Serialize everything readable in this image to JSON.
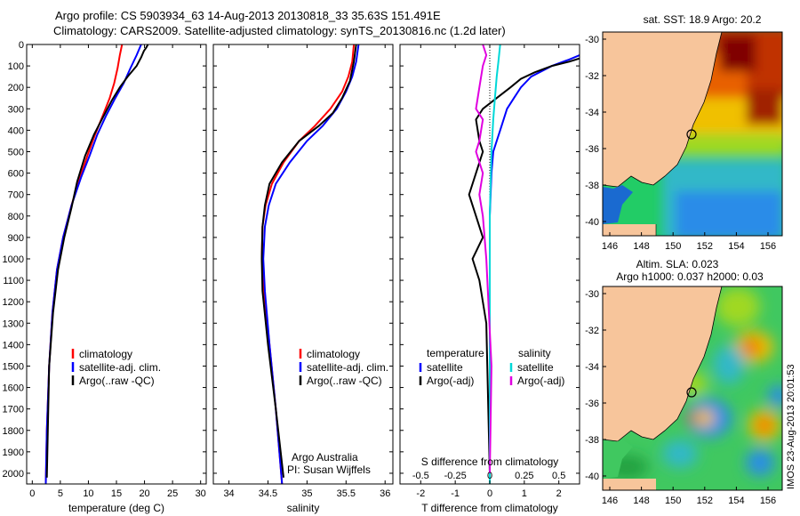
{
  "header": {
    "line1": "Argo profile: CS 5903934_63 14-Aug-2013 20130818_33 35.63S 151.491E",
    "line2": "Climatology: CARS2009. Satellite-adjusted climatology: synTS_20130816.nc (1.2d later)"
  },
  "credit": {
    "org": "Argo Australia",
    "pi": "PI: Susan Wijffels",
    "imos": "IMOS 23-Aug-2013 20:01:53"
  },
  "colors": {
    "climatology": "#ff0000",
    "satellite": "#0000ff",
    "argo": "#000000",
    "sat_salinity": "#00d8d8",
    "argo_salinity": "#e000e0",
    "land": "#f7c59b"
  },
  "chart_data": [
    {
      "type": "line",
      "id": "temperature",
      "xlabel": "temperature (deg C)",
      "ylim": [
        2050,
        0
      ],
      "xlim": [
        -1,
        31
      ],
      "yticks": [
        0,
        100,
        200,
        300,
        400,
        500,
        600,
        700,
        800,
        900,
        1000,
        1100,
        1200,
        1300,
        1400,
        1500,
        1600,
        1700,
        1800,
        1900,
        2000
      ],
      "xticks": [
        0,
        5,
        10,
        15,
        20,
        25,
        30
      ],
      "legend": [
        "climatology",
        "satellite-adj. clim.",
        "Argo(..raw -QC)"
      ],
      "series": [
        {
          "name": "climatology",
          "color": "#ff0000",
          "x": [
            2.4,
            2.6,
            3.0,
            3.6,
            4.4,
            5.5,
            7.0,
            8.5,
            9.8,
            11.2,
            12.6,
            13.8,
            14.6,
            15.2,
            15.6,
            16.0
          ],
          "y": [
            2050,
            1800,
            1500,
            1250,
            1050,
            900,
            750,
            620,
            520,
            420,
            330,
            250,
            180,
            110,
            50,
            0
          ]
        },
        {
          "name": "satellite-adj. clim.",
          "color": "#0000ff",
          "x": [
            2.4,
            2.6,
            3.0,
            3.6,
            4.4,
            5.5,
            7.0,
            8.7,
            10.2,
            11.6,
            13.2,
            14.8,
            16.3,
            17.5,
            18.6,
            19.4
          ],
          "y": [
            2050,
            1800,
            1500,
            1250,
            1050,
            900,
            750,
            620,
            520,
            420,
            330,
            250,
            180,
            110,
            50,
            0
          ]
        },
        {
          "name": "Argo(..raw -QC)",
          "color": "#000000",
          "x": [
            2.6,
            3.0,
            3.7,
            4.6,
            5.7,
            7.0,
            8.0,
            9.4,
            11.0,
            12.6,
            14.2,
            15.6,
            17.0,
            18.6,
            19.4,
            19.9,
            20.3,
            20.6
          ],
          "y": [
            2020,
            1500,
            1250,
            1050,
            900,
            760,
            640,
            520,
            420,
            340,
            260,
            200,
            150,
            100,
            60,
            30,
            15,
            0
          ]
        }
      ]
    },
    {
      "type": "line",
      "id": "salinity",
      "xlabel": "salinity",
      "ylim": [
        2050,
        0
      ],
      "xlim": [
        33.8,
        36.1
      ],
      "xticks": [
        34,
        34.5,
        35,
        35.5,
        36
      ],
      "legend": [
        "climatology",
        "satellite-adj. clim.",
        "Argo(..raw -QC)"
      ],
      "series": [
        {
          "name": "climatology",
          "color": "#ff0000",
          "x": [
            34.68,
            34.6,
            34.52,
            34.45,
            34.42,
            34.43,
            34.47,
            34.55,
            34.7,
            34.9,
            35.1,
            35.3,
            35.45,
            35.53,
            35.58,
            35.6
          ],
          "y": [
            2050,
            1700,
            1400,
            1150,
            1000,
            850,
            750,
            650,
            550,
            450,
            380,
            300,
            220,
            150,
            80,
            0
          ]
        },
        {
          "name": "satellite-adj. clim.",
          "color": "#0000ff",
          "x": [
            34.68,
            34.6,
            34.52,
            34.46,
            34.44,
            34.46,
            34.51,
            34.6,
            34.78,
            35.0,
            35.2,
            35.38,
            35.5,
            35.58,
            35.63,
            35.66
          ],
          "y": [
            2050,
            1700,
            1400,
            1150,
            1000,
            850,
            750,
            650,
            550,
            450,
            380,
            300,
            220,
            150,
            80,
            0
          ]
        },
        {
          "name": "Argo(..raw -QC)",
          "color": "#000000",
          "x": [
            34.7,
            34.6,
            34.5,
            34.43,
            34.42,
            34.43,
            34.46,
            34.52,
            34.68,
            34.9,
            35.15,
            35.33,
            35.45,
            35.55,
            35.6,
            35.63
          ],
          "y": [
            2020,
            1700,
            1400,
            1150,
            1000,
            850,
            750,
            650,
            550,
            450,
            380,
            320,
            250,
            170,
            80,
            0
          ]
        }
      ]
    },
    {
      "type": "line",
      "id": "difference",
      "xlabel": "T difference from climatology",
      "x2label": "S difference from climatology",
      "ylim": [
        2050,
        0
      ],
      "xlim": [
        -2.6,
        2.6
      ],
      "xticks": [
        -2,
        -1,
        0,
        1,
        2
      ],
      "x2ticks": [
        "-0.5",
        "-0.25",
        "0",
        "0.25",
        "0.5"
      ],
      "x2tick_positions": [
        -2,
        -1,
        0,
        1,
        2
      ],
      "legend_titles": [
        "temperature",
        "salinity"
      ],
      "legend": [
        "satellite",
        "Argo(-adj)",
        "satellite",
        "Argo(-adj)"
      ],
      "series": [
        {
          "name": "temperature satellite",
          "color": "#0000ff",
          "x": [
            0,
            0,
            0.05,
            0.1,
            0.3,
            0.5,
            0.7,
            0.9,
            1.2,
            1.8,
            2.3,
            2.6
          ],
          "y": [
            2050,
            800,
            600,
            500,
            400,
            300,
            250,
            200,
            150,
            100,
            70,
            50
          ]
        },
        {
          "name": "temperature Argo(-adj)",
          "color": "#000000",
          "x": [
            0,
            -0.1,
            -0.3,
            -0.5,
            -0.2,
            -0.4,
            -0.6,
            -0.4,
            -0.2,
            -0.3,
            -0.4,
            -0.2,
            0.2,
            0.6,
            0.9,
            1.3,
            1.8,
            2.3,
            2.7
          ],
          "y": [
            2000,
            1300,
            1100,
            1000,
            900,
            800,
            700,
            600,
            500,
            450,
            350,
            300,
            250,
            200,
            160,
            130,
            100,
            80,
            60
          ]
        },
        {
          "name": "salinity satellite",
          "color": "#00d8d8",
          "x": [
            0,
            0,
            0.05,
            0.1,
            0.15,
            0.2,
            0.25,
            0.3
          ],
          "y": [
            2050,
            800,
            500,
            350,
            250,
            150,
            80,
            0
          ]
        },
        {
          "name": "salinity Argo(-adj)",
          "color": "#e000e0",
          "x": [
            0,
            0.05,
            -0.1,
            -0.2,
            -0.3,
            -0.2,
            -0.4,
            -0.3,
            -0.2,
            -0.4,
            -0.3,
            -0.2,
            -0.1,
            -0.2
          ],
          "y": [
            2000,
            1500,
            1000,
            800,
            700,
            600,
            500,
            450,
            350,
            300,
            200,
            100,
            50,
            0
          ]
        }
      ]
    },
    {
      "type": "heatmap",
      "id": "sst_map",
      "title": "sat. SST: 18.9 Argo: 20.2",
      "xticks": [
        "146",
        "148",
        "150",
        "152",
        "154",
        "156"
      ],
      "yticks": [
        "-30",
        "-32",
        "-34",
        "-36",
        "-38",
        "-40"
      ],
      "argo_position": [
        151.491,
        -35.63
      ]
    },
    {
      "type": "heatmap",
      "id": "sla_map",
      "title": "Altim. SLA: 0.023",
      "subtitle": "Argo h1000: 0.037 h2000: 0.03",
      "xticks": [
        "146",
        "148",
        "150",
        "152",
        "154",
        "156"
      ],
      "yticks": [
        "-30",
        "-32",
        "-34",
        "-36",
        "-38",
        "-40"
      ],
      "argo_position": [
        151.491,
        -35.63
      ]
    }
  ]
}
